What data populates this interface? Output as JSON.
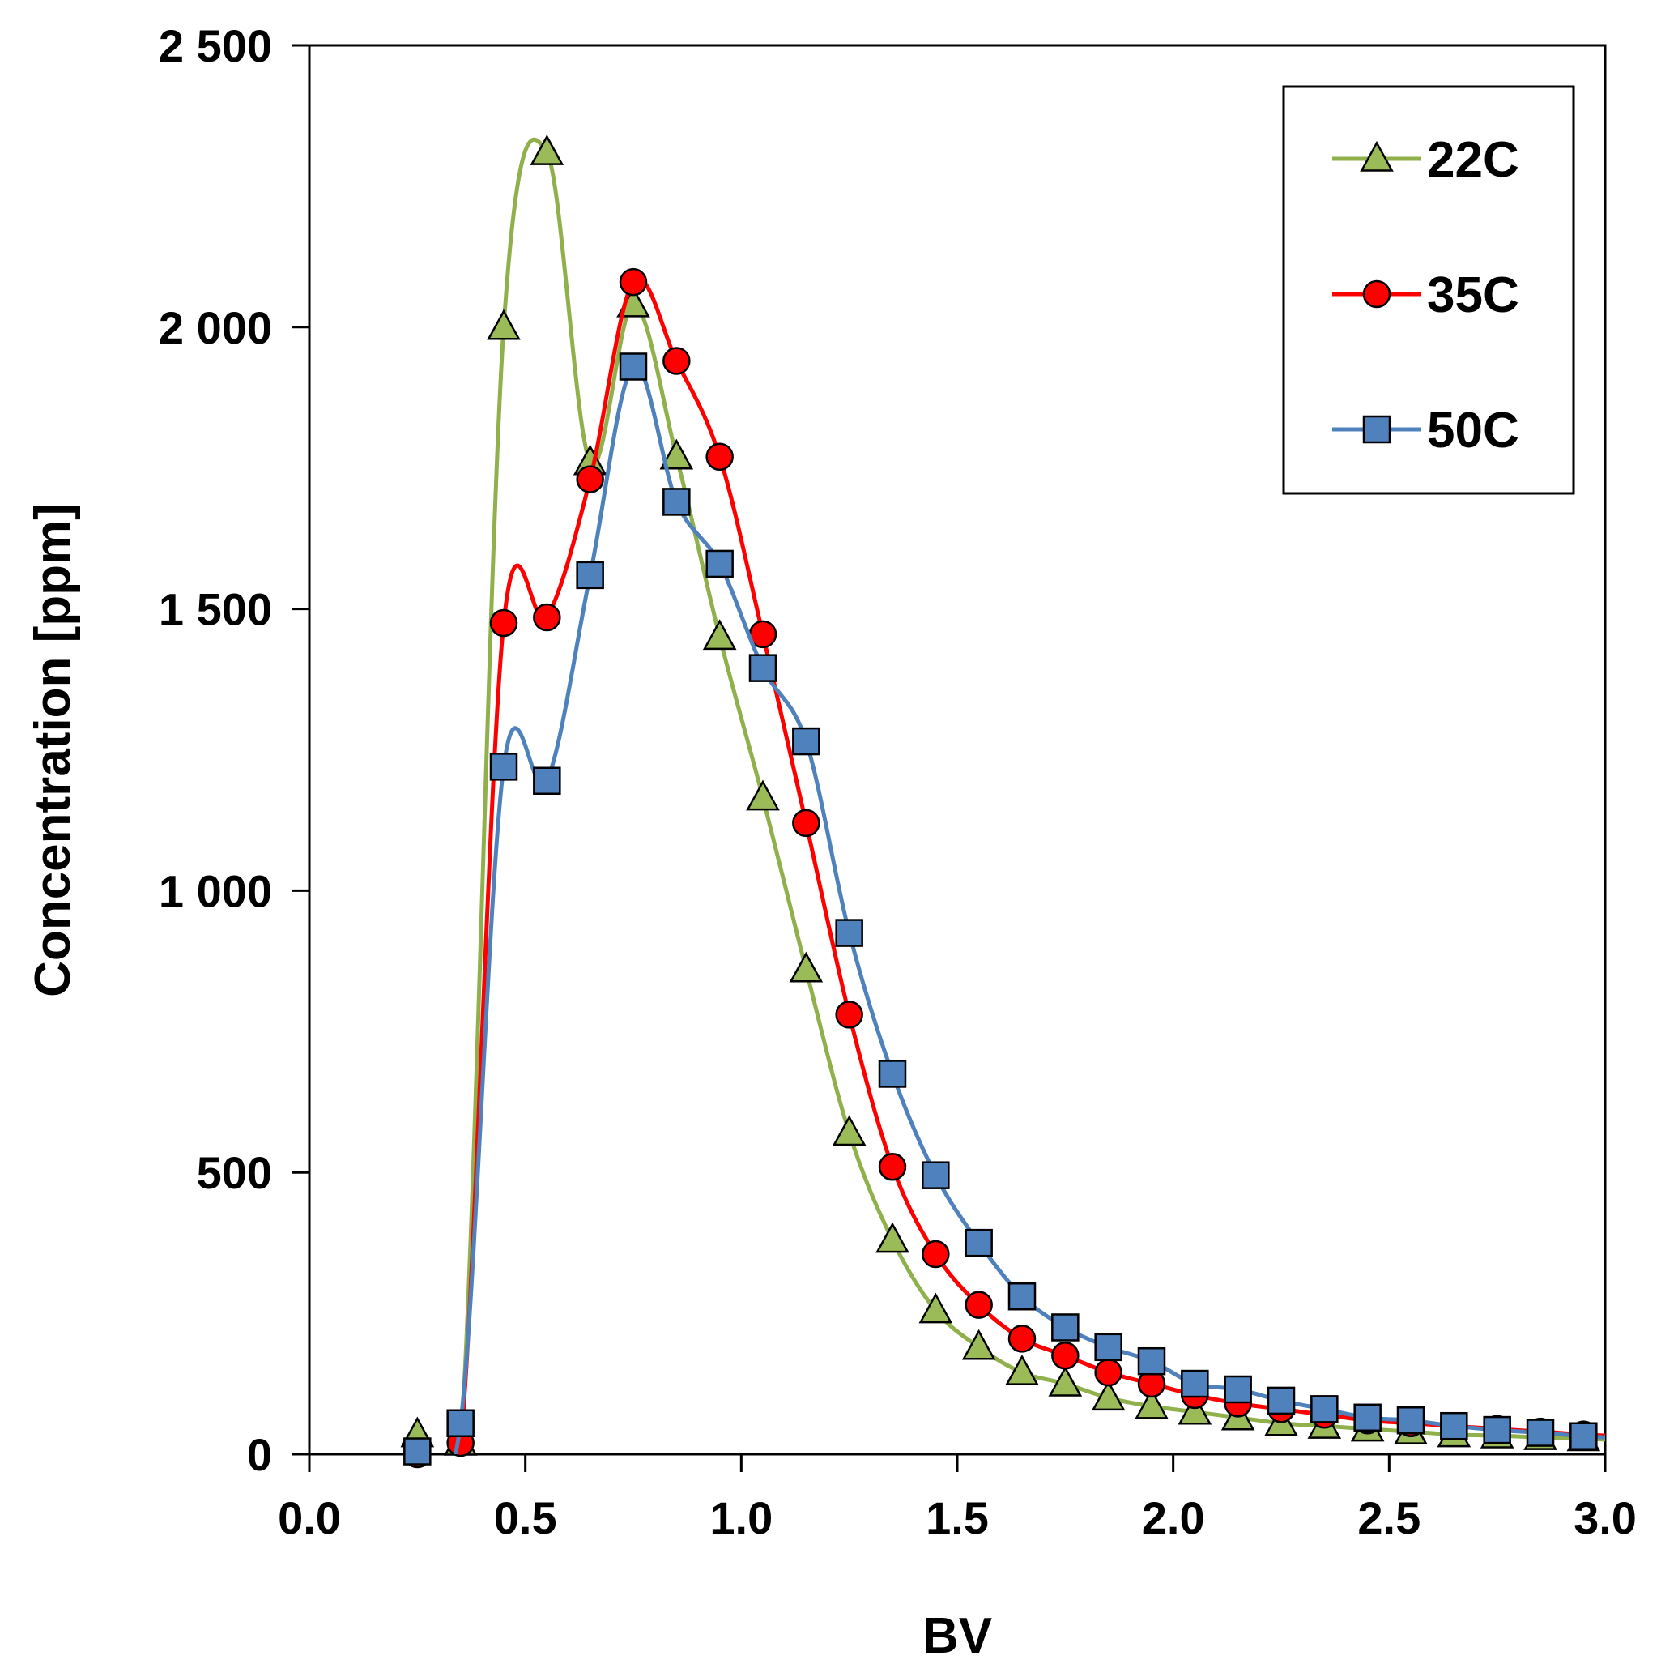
{
  "chart_data": {
    "type": "line",
    "title": "",
    "xlabel": "BV",
    "ylabel": "Concentration [ppm]",
    "xlim": [
      0.0,
      3.0
    ],
    "ylim": [
      0,
      2500
    ],
    "xticks": [
      0.0,
      0.5,
      1.0,
      1.5,
      2.0,
      2.5,
      3.0
    ],
    "xtick_labels": [
      "0.0",
      "0.5",
      "1.0",
      "1.5",
      "2.0",
      "2.5",
      "3.0"
    ],
    "yticks": [
      0,
      500,
      1000,
      1500,
      2000,
      2500
    ],
    "ytick_labels": [
      "0",
      "500",
      "1 000",
      "1 500",
      "2 000",
      "2 500"
    ],
    "grid": false,
    "legend_position": "top-right",
    "series": [
      {
        "name": "22C",
        "color": "#8fb04b",
        "marker_fill": "#9bbb59",
        "marker": "triangle",
        "x": [
          0.25,
          0.35,
          0.45,
          0.55,
          0.65,
          0.75,
          0.85,
          0.95,
          1.05,
          1.15,
          1.25,
          1.35,
          1.45,
          1.55,
          1.65,
          1.75,
          1.85,
          1.95,
          2.05,
          2.15,
          2.25,
          2.35,
          2.45,
          2.55,
          2.65,
          2.75,
          2.85,
          2.95
        ],
        "y": [
          35,
          20,
          2000,
          2310,
          1760,
          2040,
          1770,
          1450,
          1165,
          860,
          570,
          380,
          255,
          190,
          145,
          125,
          100,
          85,
          75,
          65,
          55,
          50,
          45,
          40,
          35,
          33,
          30,
          28
        ]
      },
      {
        "name": "35C",
        "color": "#ff0000",
        "marker_fill": "#ff0000",
        "marker": "circle",
        "x": [
          0.25,
          0.35,
          0.45,
          0.55,
          0.65,
          0.75,
          0.85,
          0.95,
          1.05,
          1.15,
          1.25,
          1.35,
          1.45,
          1.55,
          1.65,
          1.75,
          1.85,
          1.95,
          2.05,
          2.15,
          2.25,
          2.35,
          2.45,
          2.55,
          2.65,
          2.75,
          2.85,
          2.95
        ],
        "y": [
          0,
          20,
          1475,
          1485,
          1730,
          2080,
          1940,
          1770,
          1455,
          1120,
          780,
          510,
          355,
          265,
          205,
          175,
          145,
          125,
          105,
          90,
          80,
          70,
          60,
          55,
          50,
          45,
          40,
          35
        ]
      },
      {
        "name": "50C",
        "color": "#4f81bd",
        "marker_fill": "#4f81bd",
        "marker": "square",
        "x": [
          0.25,
          0.35,
          0.45,
          0.55,
          0.65,
          0.75,
          0.85,
          0.95,
          1.05,
          1.15,
          1.25,
          1.35,
          1.45,
          1.55,
          1.65,
          1.75,
          1.85,
          1.95,
          2.05,
          2.15,
          2.25,
          2.35,
          2.45,
          2.55,
          2.65,
          2.75,
          2.85,
          2.95
        ],
        "y": [
          5,
          55,
          1220,
          1195,
          1560,
          1930,
          1690,
          1580,
          1395,
          1265,
          925,
          675,
          495,
          375,
          280,
          225,
          190,
          165,
          125,
          115,
          95,
          80,
          65,
          60,
          50,
          43,
          38,
          32
        ]
      }
    ]
  }
}
